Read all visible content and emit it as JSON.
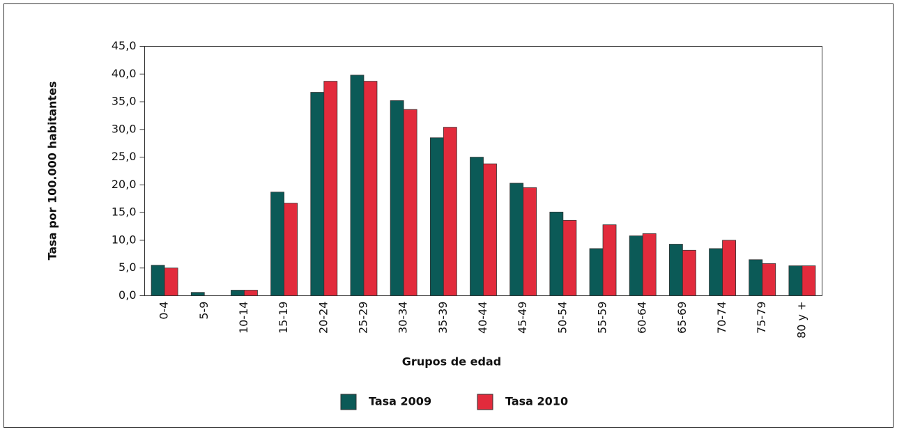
{
  "chart_data": {
    "type": "bar",
    "y_label": "Tasa por 100.000 habitantes",
    "x_label": "Grupos de edad",
    "categories": [
      "0-4",
      "5-9",
      "10-14",
      "15-19",
      "20-24",
      "25-29",
      "30-34",
      "35-39",
      "40-44",
      "45-49",
      "50-54",
      "55-59",
      "60-64",
      "65-69",
      "70-74",
      "75-79",
      "80 y +"
    ],
    "series": [
      {
        "name": "Tasa 2009",
        "color": "#0b5a57",
        "values": [
          5.5,
          0.6,
          1.0,
          18.7,
          36.7,
          39.8,
          35.2,
          28.5,
          25.0,
          20.3,
          15.1,
          8.5,
          10.8,
          9.3,
          8.5,
          6.5,
          5.4
        ]
      },
      {
        "name": "Tasa 2010",
        "color": "#e22b3c",
        "values": [
          5.0,
          0,
          1.0,
          16.7,
          38.7,
          38.7,
          33.6,
          30.4,
          23.8,
          19.5,
          13.6,
          12.8,
          11.2,
          8.2,
          10.0,
          5.8,
          5.4
        ]
      }
    ],
    "ylim": [
      0,
      45
    ],
    "yticks": [
      {
        "value": 0,
        "label": "0,0"
      },
      {
        "value": 5,
        "label": "5,0"
      },
      {
        "value": 10,
        "label": "10,0"
      },
      {
        "value": 15,
        "label": "15,0"
      },
      {
        "value": 20,
        "label": "20,0"
      },
      {
        "value": 25,
        "label": "25,0"
      },
      {
        "value": 30,
        "label": "30,0"
      },
      {
        "value": 35,
        "label": "35,0"
      },
      {
        "value": 40,
        "label": "40,0"
      },
      {
        "value": 45,
        "label": "45,0"
      }
    ],
    "grid": false,
    "legend": "bottom"
  }
}
